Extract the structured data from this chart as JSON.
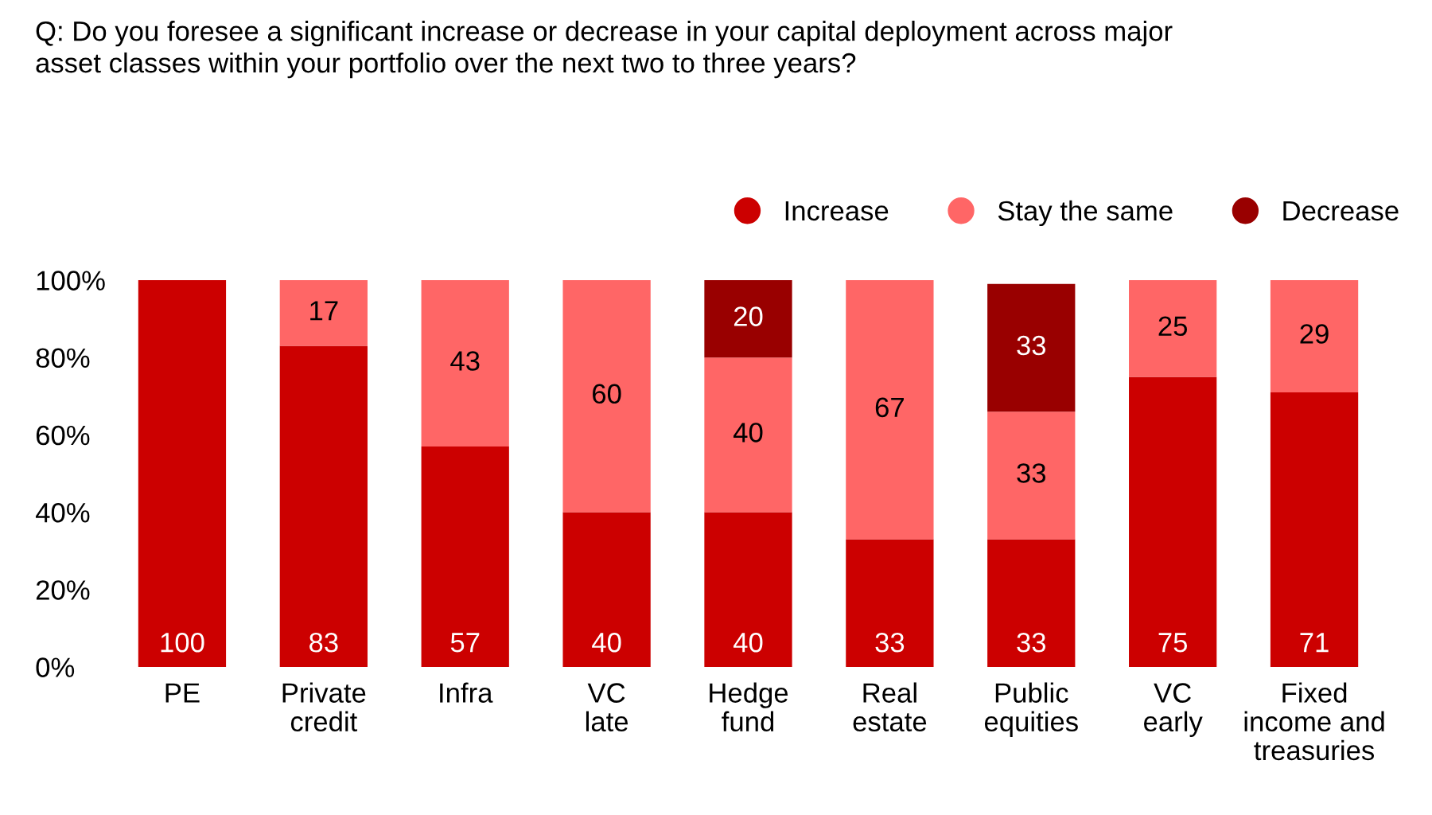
{
  "chart_data": {
    "type": "bar",
    "title": "Q: Do you foresee a significant increase or decrease in your capital deployment across major\nasset classes within your portfolio over the next two to three years?",
    "categories": [
      "PE",
      "Private\ncredit",
      "Infra",
      "VC\nlate",
      "Hedge\nfund",
      "Real\nestate",
      "Public\nequities",
      "VC\nearly",
      "Fixed\nincome and\ntreasuries"
    ],
    "series": [
      {
        "name": "Increase",
        "color": "#cc0000",
        "values": [
          100,
          83,
          57,
          40,
          40,
          33,
          33,
          75,
          71
        ]
      },
      {
        "name": "Stay the same",
        "color": "#ff6666",
        "values": [
          null,
          17,
          43,
          60,
          40,
          67,
          33,
          25,
          29
        ]
      },
      {
        "name": "Decrease",
        "color": "#990000",
        "values": [
          null,
          null,
          null,
          null,
          20,
          null,
          33,
          null,
          null
        ]
      }
    ],
    "stacked": true,
    "data_labels": true,
    "ylim": [
      0,
      100
    ],
    "yticks": [
      {
        "value": 0,
        "label": "0%"
      },
      {
        "value": 20,
        "label": "20%"
      },
      {
        "value": 40,
        "label": "40%"
      },
      {
        "value": 60,
        "label": "60%"
      },
      {
        "value": 80,
        "label": "80%"
      },
      {
        "value": 100,
        "label": "100%"
      }
    ],
    "legend": "top right"
  }
}
